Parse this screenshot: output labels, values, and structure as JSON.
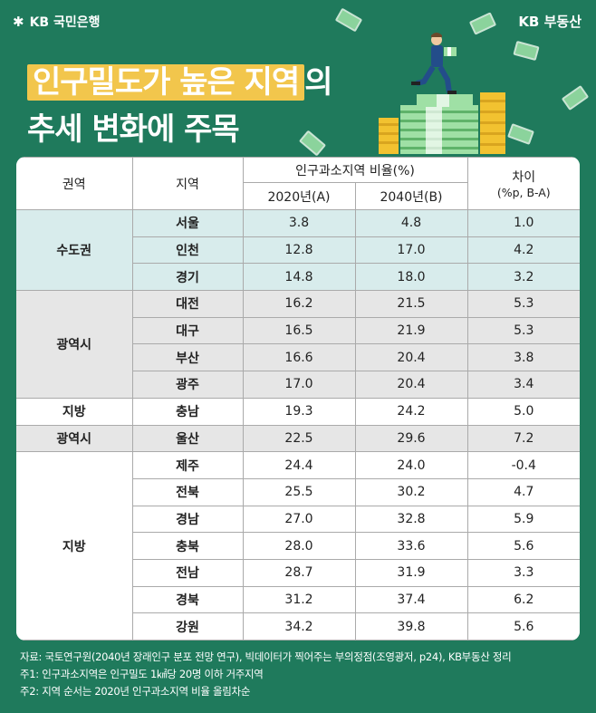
{
  "brand": {
    "left_logo": "KB 국민은행",
    "right_logo": "KB 부동산"
  },
  "title": {
    "highlight": "인구밀도가 높은 지역",
    "line1_rest": "의",
    "line2": "추세 변화에 주목"
  },
  "table": {
    "headers": {
      "region": "권역",
      "area": "지역",
      "ratio_group": "인구과소지역 비율(%)",
      "y2020": "2020년(A)",
      "y2040": "2040년(B)",
      "diff_line1": "차이",
      "diff_line2": "(%p, B-A)"
    },
    "groups": [
      {
        "region": "수도권",
        "style": "sudo",
        "rows": [
          {
            "area": "서울",
            "a": "3.8",
            "b": "4.8",
            "d": "1.0"
          },
          {
            "area": "인천",
            "a": "12.8",
            "b": "17.0",
            "d": "4.2"
          },
          {
            "area": "경기",
            "a": "14.8",
            "b": "18.0",
            "d": "3.2"
          }
        ]
      },
      {
        "region": "광역시",
        "style": "metro",
        "rows": [
          {
            "area": "대전",
            "a": "16.2",
            "b": "21.5",
            "d": "5.3"
          },
          {
            "area": "대구",
            "a": "16.5",
            "b": "21.9",
            "d": "5.3"
          },
          {
            "area": "부산",
            "a": "16.6",
            "b": "20.4",
            "d": "3.8"
          },
          {
            "area": "광주",
            "a": "17.0",
            "b": "20.4",
            "d": "3.4"
          }
        ]
      },
      {
        "region": "지방",
        "style": "jibang",
        "rows": [
          {
            "area": "충남",
            "a": "19.3",
            "b": "24.2",
            "d": "5.0"
          }
        ]
      },
      {
        "region": "광역시",
        "style": "metro",
        "rows": [
          {
            "area": "울산",
            "a": "22.5",
            "b": "29.6",
            "d": "7.2"
          }
        ]
      },
      {
        "region": "지방",
        "style": "jibang",
        "rows": [
          {
            "area": "제주",
            "a": "24.4",
            "b": "24.0",
            "d": "-0.4"
          },
          {
            "area": "전북",
            "a": "25.5",
            "b": "30.2",
            "d": "4.7"
          },
          {
            "area": "경남",
            "a": "27.0",
            "b": "32.8",
            "d": "5.9"
          },
          {
            "area": "충북",
            "a": "28.0",
            "b": "33.6",
            "d": "5.6"
          },
          {
            "area": "전남",
            "a": "28.7",
            "b": "31.9",
            "d": "3.3"
          },
          {
            "area": "경북",
            "a": "31.2",
            "b": "37.4",
            "d": "6.2"
          },
          {
            "area": "강원",
            "a": "34.2",
            "b": "39.8",
            "d": "5.6"
          }
        ]
      }
    ]
  },
  "notes": {
    "source": "자료: 국토연구원(2040년 장래인구 분포 전망 연구), 빅데이터가 찍어주는 부의정점(조영광저, p24), KB부동산 정리",
    "note1": "주1: 인구과소지역은 인구밀도 1㎢당 20명 이하 거주지역",
    "note2": "주2: 지역 순서는 2020년 인구과소지역 비율 올림차순"
  },
  "colors": {
    "background": "#1f7a5c",
    "highlight": "#f2c64c",
    "sudo_row": "#d8ecec",
    "metro_row": "#e6e6e6"
  }
}
